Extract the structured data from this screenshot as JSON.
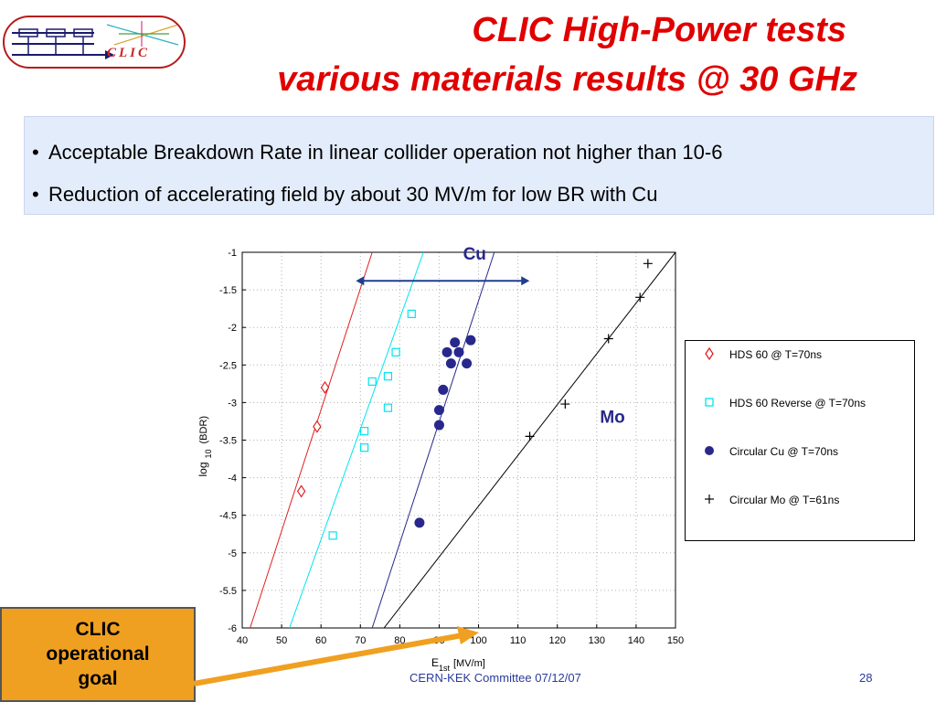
{
  "header": {
    "logo_text": "CLIC",
    "title_line1": "CLIC High-Power tests",
    "title_line2": "various materials results @ 30 GHz"
  },
  "bullets": [
    "Acceptable Breakdown Rate in linear collider operation not higher than 10-6",
    "Reduction of accelerating field by about 30 MV/m for low BR with Cu"
  ],
  "callout": {
    "line1": "CLIC",
    "line2": "operational",
    "line3": "goal"
  },
  "footer": {
    "text": "CERN-KEK Committee 07/12/07",
    "page": "28"
  },
  "colors": {
    "title": "#e00000",
    "hds60": "#e02020",
    "hds60_reverse": "#00e5ee",
    "cu": "#28288c",
    "mo": "#000000",
    "callout_bg": "#f0a020",
    "arrow_blue": "#1f3f8f"
  },
  "chart_data": {
    "type": "scatter",
    "xlabel": "E",
    "xlabel_sub": "1st",
    "xlabel_unit": "[MV/m]",
    "ylabel": "log",
    "ylabel_sub": "10",
    "ylabel_unit": "(BDR)",
    "xlim": [
      40,
      150
    ],
    "ylim": [
      -6,
      -1
    ],
    "xticks": [
      40,
      50,
      60,
      70,
      80,
      90,
      100,
      110,
      120,
      130,
      140,
      150
    ],
    "yticks": [
      -1,
      -1.5,
      -2,
      -2.5,
      -3,
      -3.5,
      -4,
      -4.5,
      -5,
      -5.5,
      -6
    ],
    "grid": "dotted",
    "annotations": [
      {
        "text": "Cu",
        "x": 99,
        "y": -1.0
      },
      {
        "text": "Mo",
        "x": 134,
        "y": -3.15
      }
    ],
    "range_arrow": {
      "x1": 67,
      "x2": 112,
      "y": -1.38
    },
    "series": [
      {
        "name": "HDS 60 @ T=70ns",
        "marker": "diamond",
        "color": "#e02020",
        "x": [
          55,
          59,
          61
        ],
        "y": [
          -4.18,
          -3.32,
          -2.8
        ],
        "fit": [
          [
            42,
            -6.0
          ],
          [
            73,
            -1.0
          ]
        ]
      },
      {
        "name": "HDS 60 Reverse @ T=70ns",
        "marker": "square",
        "color": "#00e5ee",
        "x": [
          63,
          71,
          71,
          73,
          77,
          77,
          79,
          83
        ],
        "y": [
          -4.77,
          -3.38,
          -3.6,
          -2.72,
          -3.07,
          -2.65,
          -2.33,
          -1.82
        ],
        "fit": [
          [
            52,
            -6.0
          ],
          [
            86,
            -1.0
          ]
        ]
      },
      {
        "name": "Circular Cu @ T=70ns",
        "marker": "circle",
        "color": "#28288c",
        "x": [
          85,
          90,
          90,
          91,
          92,
          93,
          94,
          95,
          97,
          98
        ],
        "y": [
          -4.6,
          -3.3,
          -3.1,
          -2.83,
          -2.33,
          -2.48,
          -2.2,
          -2.33,
          -2.48,
          -2.17
        ],
        "fit": [
          [
            73,
            -6.0
          ],
          [
            104,
            -1.0
          ]
        ]
      },
      {
        "name": "Circular Mo @ T=61ns",
        "marker": "plus",
        "color": "#000000",
        "x": [
          113,
          122,
          133,
          141,
          143
        ],
        "y": [
          -3.45,
          -3.02,
          -2.15,
          -1.6,
          -1.15
        ],
        "fit": [
          [
            76,
            -6.0
          ],
          [
            150,
            -1.0
          ]
        ]
      }
    ]
  }
}
